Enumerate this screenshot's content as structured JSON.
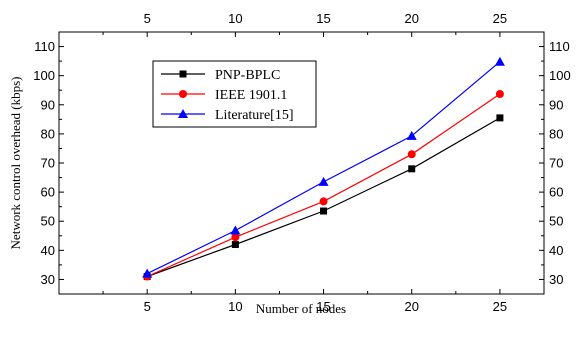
{
  "chart_data": {
    "type": "line",
    "xlabel": "Number of nodes",
    "ylabel": "Network control overhead (kbps)",
    "xlim": [
      0,
      27.5
    ],
    "ylim": [
      25,
      115
    ],
    "x_ticks": [
      5,
      10,
      15,
      20,
      25
    ],
    "y_ticks": [
      30,
      40,
      50,
      60,
      70,
      80,
      90,
      100,
      110
    ],
    "x_tick_labels": [
      "5",
      "10",
      "15",
      "20",
      "25"
    ],
    "y_tick_labels": [
      "30",
      "40",
      "50",
      "60",
      "70",
      "80",
      "90",
      "100",
      "110"
    ],
    "mirror_axes": true,
    "grid": false,
    "legend_position": "top-left",
    "x": [
      5,
      10,
      15,
      20,
      25
    ],
    "series": [
      {
        "name": "PNP-BPLC",
        "values": [
          31,
          42,
          53.5,
          68,
          85.5
        ],
        "color": "#000000",
        "marker": "square"
      },
      {
        "name": "IEEE 1901.1",
        "values": [
          31,
          44.5,
          56.8,
          73,
          93.7
        ],
        "color": "#ff0000",
        "marker": "circle"
      },
      {
        "name": "Literature[15]",
        "values": [
          32,
          46.8,
          63.5,
          79.3,
          104.8
        ],
        "color": "#0000ff",
        "marker": "triangle"
      }
    ]
  }
}
